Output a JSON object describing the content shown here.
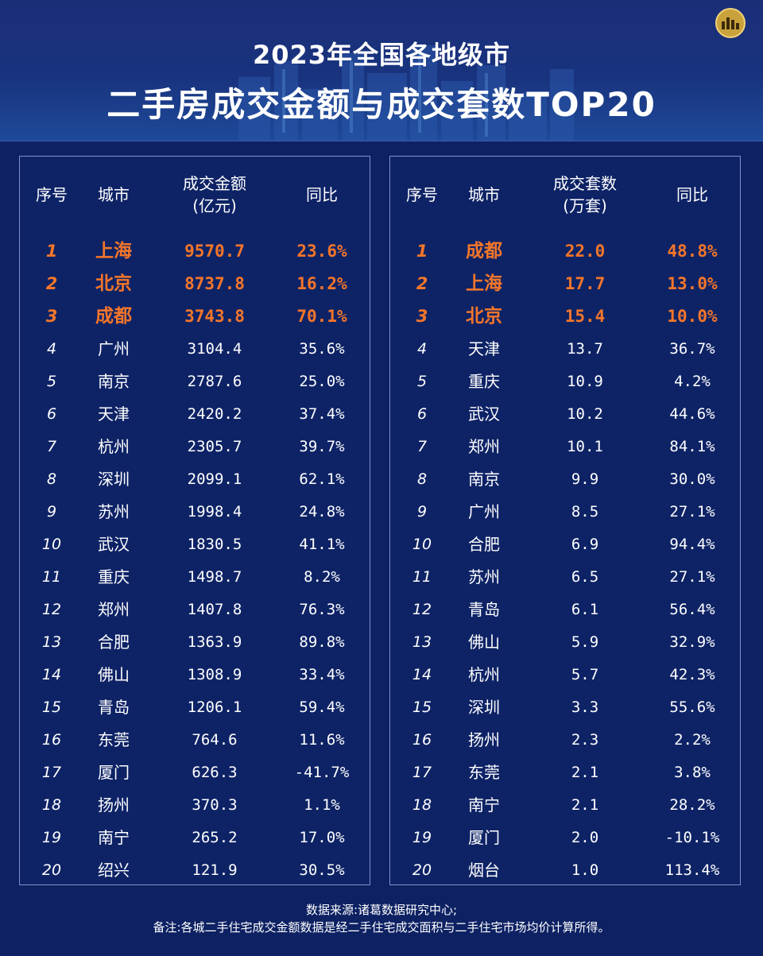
{
  "header": {
    "title_line1": "2023年全国各地级市",
    "title_line2": "二手房成交金额与成交套数TOP20"
  },
  "left_table": {
    "headers": {
      "index": "序号",
      "city": "城市",
      "amount": "成交金额",
      "amount_unit": "(亿元)",
      "yoy": "同比"
    },
    "rows": [
      {
        "idx": "1",
        "city": "上海",
        "value": "9570.7",
        "yoy": "23.6%"
      },
      {
        "idx": "2",
        "city": "北京",
        "value": "8737.8",
        "yoy": "16.2%"
      },
      {
        "idx": "3",
        "city": "成都",
        "value": "3743.8",
        "yoy": "70.1%"
      },
      {
        "idx": "4",
        "city": "广州",
        "value": "3104.4",
        "yoy": "35.6%"
      },
      {
        "idx": "5",
        "city": "南京",
        "value": "2787.6",
        "yoy": "25.0%"
      },
      {
        "idx": "6",
        "city": "天津",
        "value": "2420.2",
        "yoy": "37.4%"
      },
      {
        "idx": "7",
        "city": "杭州",
        "value": "2305.7",
        "yoy": "39.7%"
      },
      {
        "idx": "8",
        "city": "深圳",
        "value": "2099.1",
        "yoy": "62.1%"
      },
      {
        "idx": "9",
        "city": "苏州",
        "value": "1998.4",
        "yoy": "24.8%"
      },
      {
        "idx": "10",
        "city": "武汉",
        "value": "1830.5",
        "yoy": "41.1%"
      },
      {
        "idx": "11",
        "city": "重庆",
        "value": "1498.7",
        "yoy": "8.2%"
      },
      {
        "idx": "12",
        "city": "郑州",
        "value": "1407.8",
        "yoy": "76.3%"
      },
      {
        "idx": "13",
        "city": "合肥",
        "value": "1363.9",
        "yoy": "89.8%"
      },
      {
        "idx": "14",
        "city": "佛山",
        "value": "1308.9",
        "yoy": "33.4%"
      },
      {
        "idx": "15",
        "city": "青岛",
        "value": "1206.1",
        "yoy": "59.4%"
      },
      {
        "idx": "16",
        "city": "东莞",
        "value": "764.6",
        "yoy": "11.6%"
      },
      {
        "idx": "17",
        "city": "厦门",
        "value": "626.3",
        "yoy": "-41.7%"
      },
      {
        "idx": "18",
        "city": "扬州",
        "value": "370.3",
        "yoy": "1.1%"
      },
      {
        "idx": "19",
        "city": "南宁",
        "value": "265.2",
        "yoy": "17.0%"
      },
      {
        "idx": "20",
        "city": "绍兴",
        "value": "121.9",
        "yoy": "30.5%"
      }
    ]
  },
  "right_table": {
    "headers": {
      "index": "序号",
      "city": "城市",
      "amount": "成交套数",
      "amount_unit": "(万套)",
      "yoy": "同比"
    },
    "rows": [
      {
        "idx": "1",
        "city": "成都",
        "value": "22.0",
        "yoy": "48.8%"
      },
      {
        "idx": "2",
        "city": "上海",
        "value": "17.7",
        "yoy": "13.0%"
      },
      {
        "idx": "3",
        "city": "北京",
        "value": "15.4",
        "yoy": "10.0%"
      },
      {
        "idx": "4",
        "city": "天津",
        "value": "13.7",
        "yoy": "36.7%"
      },
      {
        "idx": "5",
        "city": "重庆",
        "value": "10.9",
        "yoy": "4.2%"
      },
      {
        "idx": "6",
        "city": "武汉",
        "value": "10.2",
        "yoy": "44.6%"
      },
      {
        "idx": "7",
        "city": "郑州",
        "value": "10.1",
        "yoy": "84.1%"
      },
      {
        "idx": "8",
        "city": "南京",
        "value": "9.9",
        "yoy": "30.0%"
      },
      {
        "idx": "9",
        "city": "广州",
        "value": "8.5",
        "yoy": "27.1%"
      },
      {
        "idx": "10",
        "city": "合肥",
        "value": "6.9",
        "yoy": "94.4%"
      },
      {
        "idx": "11",
        "city": "苏州",
        "value": "6.5",
        "yoy": "27.1%"
      },
      {
        "idx": "12",
        "city": "青岛",
        "value": "6.1",
        "yoy": "56.4%"
      },
      {
        "idx": "13",
        "city": "佛山",
        "value": "5.9",
        "yoy": "32.9%"
      },
      {
        "idx": "14",
        "city": "杭州",
        "value": "5.7",
        "yoy": "42.3%"
      },
      {
        "idx": "15",
        "city": "深圳",
        "value": "3.3",
        "yoy": "55.6%"
      },
      {
        "idx": "16",
        "city": "扬州",
        "value": "2.3",
        "yoy": "2.2%"
      },
      {
        "idx": "17",
        "city": "东莞",
        "value": "2.1",
        "yoy": "3.8%"
      },
      {
        "idx": "18",
        "city": "南宁",
        "value": "2.1",
        "yoy": "28.2%"
      },
      {
        "idx": "19",
        "city": "厦门",
        "value": "2.0",
        "yoy": "-10.1%"
      },
      {
        "idx": "20",
        "city": "烟台",
        "value": "1.0",
        "yoy": "113.4%"
      }
    ]
  },
  "footer": {
    "source": "数据来源:诸葛数据研究中心;",
    "note": "备注:各城二手住宅成交金额数据是经二手住宅成交面积与二手住宅市场均价计算所得。"
  },
  "colors": {
    "background": "#0d2163",
    "highlight": "#f4762a",
    "text": "#ffffff",
    "panel_border": "#7f93c8"
  }
}
